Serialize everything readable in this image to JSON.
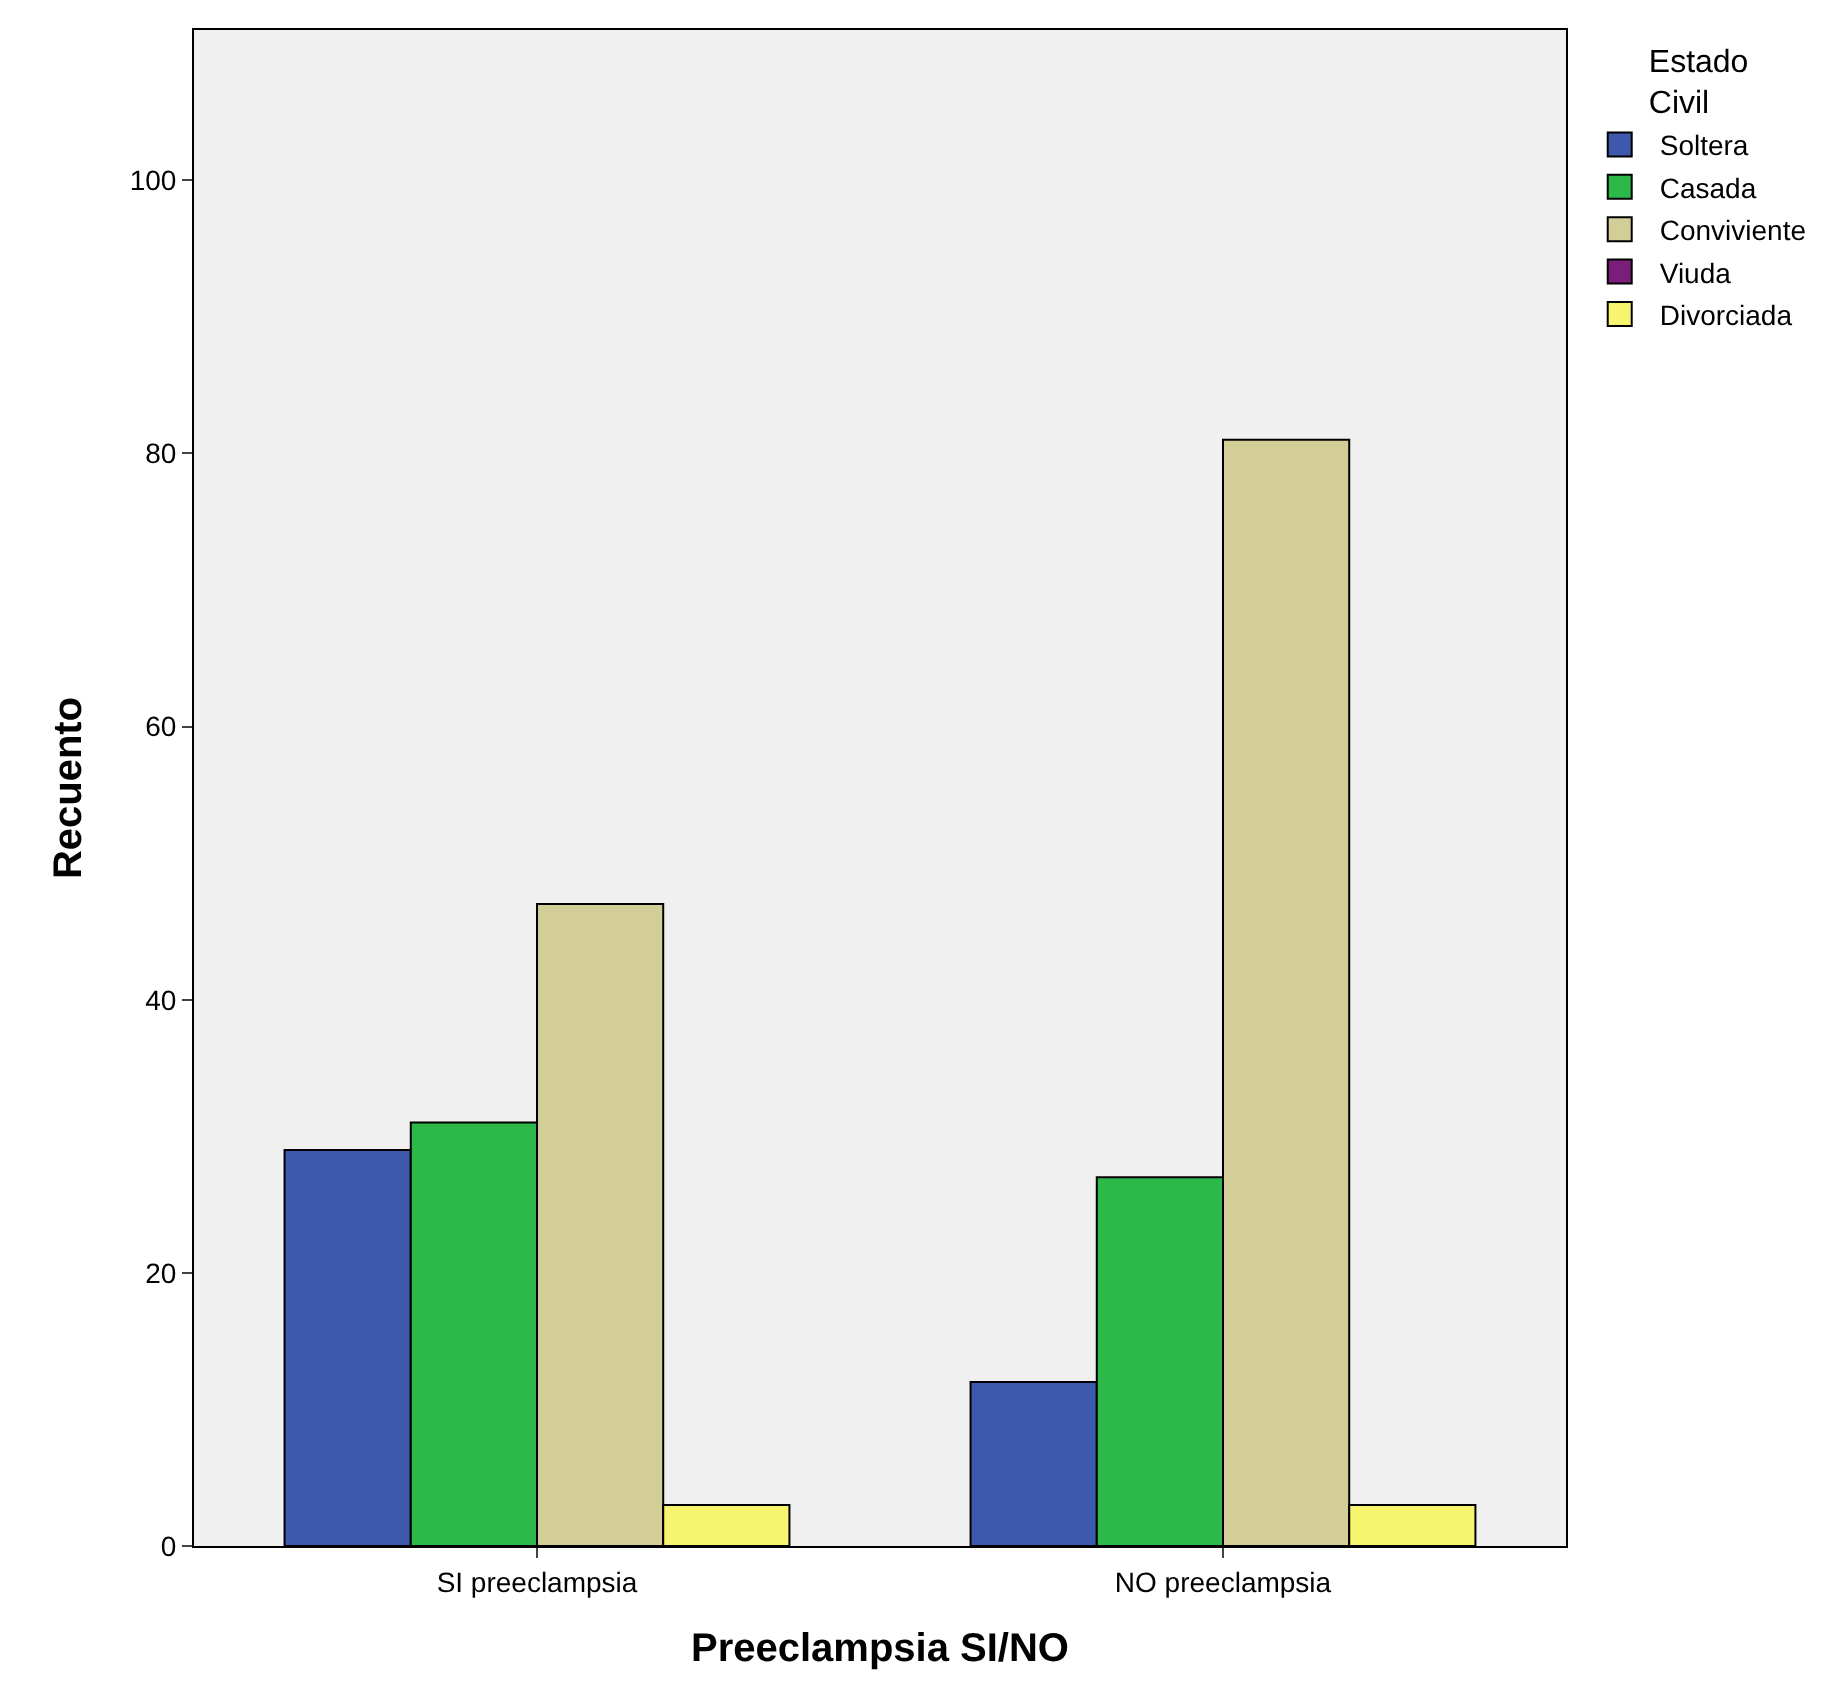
{
  "chart_data": {
    "type": "bar",
    "xlabel": "Preeclampsia SI/NO",
    "ylabel": "Recuento",
    "legend_title": "Estado Civil",
    "categories": [
      "SI preeclampsia",
      "NO preeclampsia"
    ],
    "series": [
      {
        "name": "Soltera",
        "color": "#3e58ac",
        "values": [
          29,
          12
        ]
      },
      {
        "name": "Casada",
        "color": "#2db84a",
        "values": [
          31,
          27
        ]
      },
      {
        "name": "Conviviente",
        "color": "#d3ce97",
        "values": [
          47,
          81
        ]
      },
      {
        "name": "Viuda",
        "color": "#7b1e7a",
        "values": [
          null,
          null
        ]
      },
      {
        "name": "Divorciada",
        "color": "#f7f56f",
        "values": [
          3,
          3
        ]
      }
    ],
    "ylim": [
      0,
      111
    ],
    "yticks": [
      0,
      20,
      40,
      60,
      80,
      100
    ],
    "grid": false,
    "legend": "top right"
  }
}
